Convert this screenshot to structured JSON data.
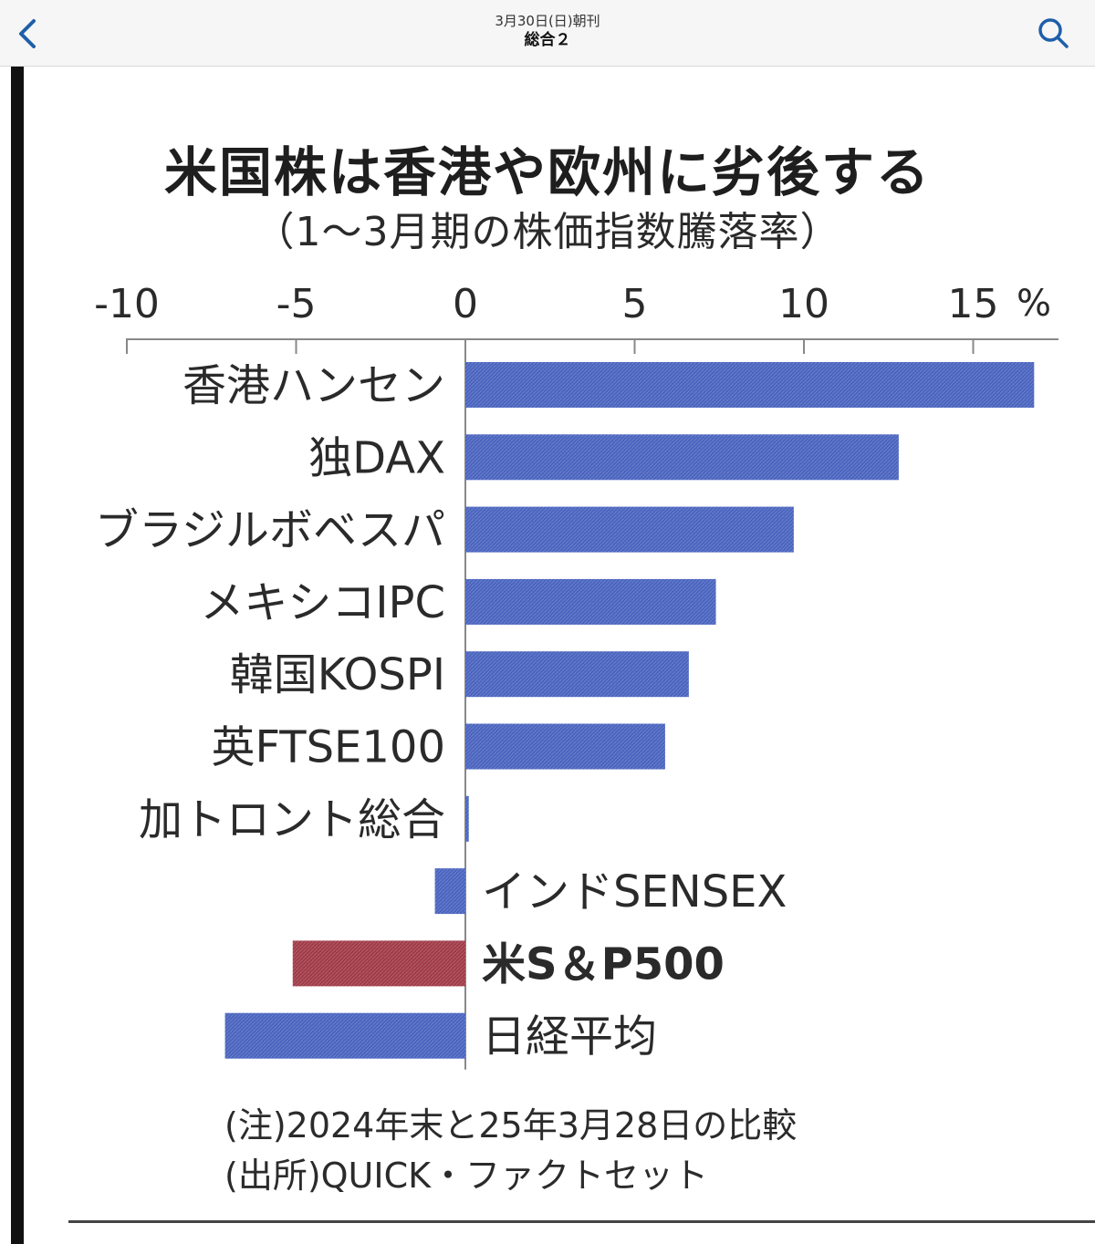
{
  "header": {
    "edition_date": "3月30日(日)朝刊",
    "section": "総合２"
  },
  "icons": {
    "back": "chevron-left-icon",
    "search": "search-icon"
  },
  "figure": {
    "title": "米国株は香港や欧州に劣後する",
    "subtitle": "（1～3月期の株価指数騰落率）",
    "notes": [
      "(注)2024年末と25年3月28日の比較",
      "(出所)QUICK・ファクトセット"
    ]
  },
  "chart_data": {
    "type": "bar",
    "orientation": "horizontal",
    "title": "米国株は香港や欧州に劣後する",
    "subtitle": "（1～3月期の株価指数騰落率）",
    "unit": "%",
    "xlim": [
      -10,
      17
    ],
    "ticks": [
      -10,
      -5,
      0,
      5,
      10,
      15
    ],
    "tick_labels": [
      "-10",
      "-5",
      "0",
      "5",
      "10",
      "15"
    ],
    "grid": false,
    "categories": [
      "香港ハンセン",
      "独DAX",
      "ブラジルボベスパ",
      "メキシコIPC",
      "韓国KOSPI",
      "英FTSE100",
      "加トロント総合",
      "インドSENSEX",
      "米S＆P500",
      "日経平均"
    ],
    "values": [
      16.8,
      12.8,
      9.7,
      7.4,
      6.6,
      5.9,
      0.1,
      -0.9,
      -5.1,
      -7.1
    ],
    "highlight": "米S＆P500",
    "colors": {
      "bar": "#4a64bf",
      "highlight": "#a03a48"
    }
  }
}
